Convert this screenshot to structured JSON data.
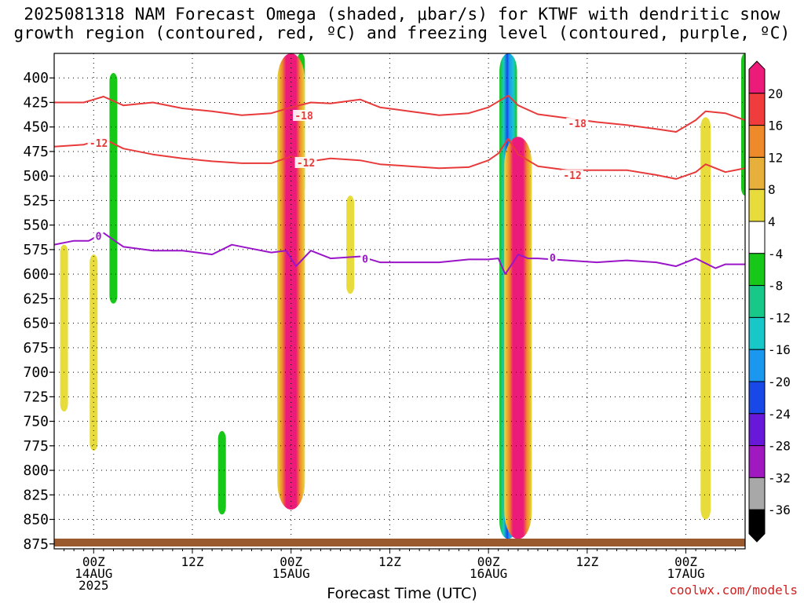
{
  "title": {
    "line1": "2025081318 NAM Forecast Omega (shaded, μbar/s) for KTWF with dendritic snow",
    "line2": "growth region (contoured, red, ºC) and freezing level (contoured, purple, ºC)"
  },
  "xlabel": "Forecast Time (UTC)",
  "credit": "coolwx.com/models",
  "colors": {
    "dendritic_contour": "#e83a3a",
    "freezing_contour": "#9a14c8",
    "ground": "#9a5a2e",
    "grid": "#000000"
  },
  "chart_data": {
    "type": "heatmap",
    "title": "2025081318 NAM Forecast Omega (shaded, μbar/s) for KTWF with dendritic snow growth region (contoured, red, ºC) and freezing level (contoured, purple, ºC)",
    "xlabel": "Forecast Time (UTC)",
    "ylabel": "",
    "x_domain": [
      -4,
      66
    ],
    "x_unit": "hours from 2025-08-14 00Z",
    "y_domain": [
      880,
      375
    ],
    "y_unit": "hPa",
    "x_ticks": [
      {
        "hour": 0,
        "label": "00Z",
        "label2": "14AUG",
        "label3": "2025"
      },
      {
        "hour": 10,
        "label": "12Z",
        "label2": "",
        "label3": ""
      },
      {
        "hour": 20,
        "label": "00Z",
        "label2": "15AUG",
        "label3": ""
      },
      {
        "hour": 30,
        "label": "12Z",
        "label2": "",
        "label3": ""
      },
      {
        "hour": 40,
        "label": "00Z",
        "label2": "16AUG",
        "label3": ""
      },
      {
        "hour": 50,
        "label": "12Z",
        "label2": "",
        "label3": ""
      },
      {
        "hour": 60,
        "label": "00Z",
        "label2": "17AUG",
        "label3": ""
      }
    ],
    "y_ticks": [
      "400",
      "425",
      "450",
      "475",
      "500",
      "525",
      "550",
      "575",
      "600",
      "625",
      "650",
      "675",
      "700",
      "725",
      "750",
      "775",
      "800",
      "825",
      "850",
      "875"
    ],
    "colorbar": {
      "ticks": [
        "20",
        "16",
        "12",
        "8",
        "4",
        "-4",
        "-8",
        "-12",
        "-16",
        "-20",
        "-24",
        "-28",
        "-32",
        "-36"
      ],
      "bins": [
        {
          "low": 20,
          "high": 24,
          "color": "#ec1a78"
        },
        {
          "low": 16,
          "high": 20,
          "color": "#f03c3c"
        },
        {
          "low": 12,
          "high": 16,
          "color": "#ee8a2a"
        },
        {
          "low": 8,
          "high": 12,
          "color": "#e6b03a"
        },
        {
          "low": 4,
          "high": 8,
          "color": "#e8dc3c"
        },
        {
          "low": -4,
          "high": 4,
          "color": "#ffffff"
        },
        {
          "low": -8,
          "high": -4,
          "color": "#18c818"
        },
        {
          "low": -12,
          "high": -8,
          "color": "#18c888"
        },
        {
          "low": -16,
          "high": -12,
          "color": "#18c8c8"
        },
        {
          "low": -20,
          "high": -16,
          "color": "#1a98f0"
        },
        {
          "low": -24,
          "high": -20,
          "color": "#1848e8"
        },
        {
          "low": -28,
          "high": -24,
          "color": "#6818d8"
        },
        {
          "low": -32,
          "high": -28,
          "color": "#a018c0"
        },
        {
          "low": -36,
          "high": -32,
          "color": "#a8a8a8"
        },
        {
          "low": -40,
          "high": -36,
          "color": "#000000"
        }
      ]
    },
    "omega_features": [
      {
        "x": 2.0,
        "y_top": 395,
        "y_bottom": 630,
        "value": -6
      },
      {
        "x": 21.0,
        "y_top": 375,
        "y_bottom": 520,
        "value": -6
      },
      {
        "x": 20.0,
        "y_top": 375,
        "y_bottom": 840,
        "value": 22
      },
      {
        "x": 42.0,
        "y_top": 375,
        "y_bottom": 870,
        "value": -14
      },
      {
        "x": 43.0,
        "y_top": 460,
        "y_bottom": 870,
        "value": 22
      },
      {
        "x": 62.0,
        "y_top": 440,
        "y_bottom": 850,
        "value": 8
      },
      {
        "x": 66.0,
        "y_top": 375,
        "y_bottom": 520,
        "value": -6
      },
      {
        "x": -3.0,
        "y_top": 570,
        "y_bottom": 740,
        "value": 5
      },
      {
        "x": 0.0,
        "y_top": 580,
        "y_bottom": 780,
        "value": 6
      },
      {
        "x": 26.0,
        "y_top": 520,
        "y_bottom": 620,
        "value": 5
      },
      {
        "x": 13.0,
        "y_top": 760,
        "y_bottom": 845,
        "value": -6
      }
    ],
    "series": [
      {
        "name": "-18",
        "kind": "dendritic",
        "x": [
          -4,
          -1,
          1,
          3,
          6,
          9,
          12,
          15,
          18,
          20,
          22,
          24,
          27,
          29,
          32,
          35,
          38,
          40,
          41,
          42,
          43,
          45,
          48,
          51,
          54,
          57,
          59,
          61,
          62,
          64,
          66
        ],
        "y": [
          425,
          425,
          419,
          428,
          425,
          431,
          434,
          438,
          436,
          430,
          425,
          426,
          422,
          430,
          434,
          438,
          436,
          430,
          424,
          418,
          428,
          437,
          441,
          445,
          448,
          452,
          455,
          443,
          434,
          436,
          443
        ]
      },
      {
        "name": "-12",
        "kind": "dendritic",
        "x": [
          -4,
          -1,
          1,
          3,
          6,
          9,
          12,
          15,
          18,
          20,
          22,
          24,
          27,
          29,
          32,
          35,
          38,
          40,
          41,
          42,
          43,
          45,
          48,
          51,
          54,
          57,
          59,
          61,
          62,
          64,
          66
        ],
        "y": [
          470,
          468,
          462,
          472,
          478,
          482,
          485,
          487,
          487,
          480,
          485,
          482,
          484,
          488,
          490,
          492,
          491,
          484,
          477,
          462,
          478,
          490,
          494,
          494,
          494,
          499,
          503,
          496,
          488,
          496,
          492
        ]
      },
      {
        "name": "0",
        "kind": "freezing",
        "x": [
          -4,
          -2,
          -0.5,
          1,
          3,
          6,
          9,
          12,
          14,
          16,
          18,
          19.5,
          20.5,
          22,
          24,
          27,
          29,
          32,
          35,
          38,
          40,
          41,
          41.7,
          42.5,
          43,
          44,
          45,
          48,
          51,
          54,
          57,
          59,
          61,
          63,
          64,
          66
        ],
        "y": [
          570,
          566,
          566,
          558,
          572,
          576,
          576,
          580,
          570,
          574,
          578,
          576,
          592,
          576,
          584,
          582,
          588,
          588,
          588,
          585,
          585,
          584,
          600,
          588,
          580,
          584,
          584,
          586,
          588,
          586,
          588,
          592,
          584,
          594,
          590,
          590
        ]
      }
    ],
    "contour_labels": [
      {
        "text": "-18",
        "x": 21.3,
        "y": 439,
        "series": "-18"
      },
      {
        "text": "-18",
        "x": 49.0,
        "y": 447,
        "series": "-18"
      },
      {
        "text": "-12",
        "x": 0.5,
        "y": 467,
        "series": "-12"
      },
      {
        "text": "-12",
        "x": 21.5,
        "y": 487,
        "series": "-12"
      },
      {
        "text": "-12",
        "x": 48.5,
        "y": 500,
        "series": "-12"
      },
      {
        "text": "0",
        "x": 0.5,
        "y": 562,
        "series": "0"
      },
      {
        "text": "0",
        "x": 27.5,
        "y": 585,
        "series": "0"
      },
      {
        "text": "0",
        "x": 46.5,
        "y": 584,
        "series": "0"
      }
    ],
    "grid": true,
    "legend": "colorbar-right"
  }
}
